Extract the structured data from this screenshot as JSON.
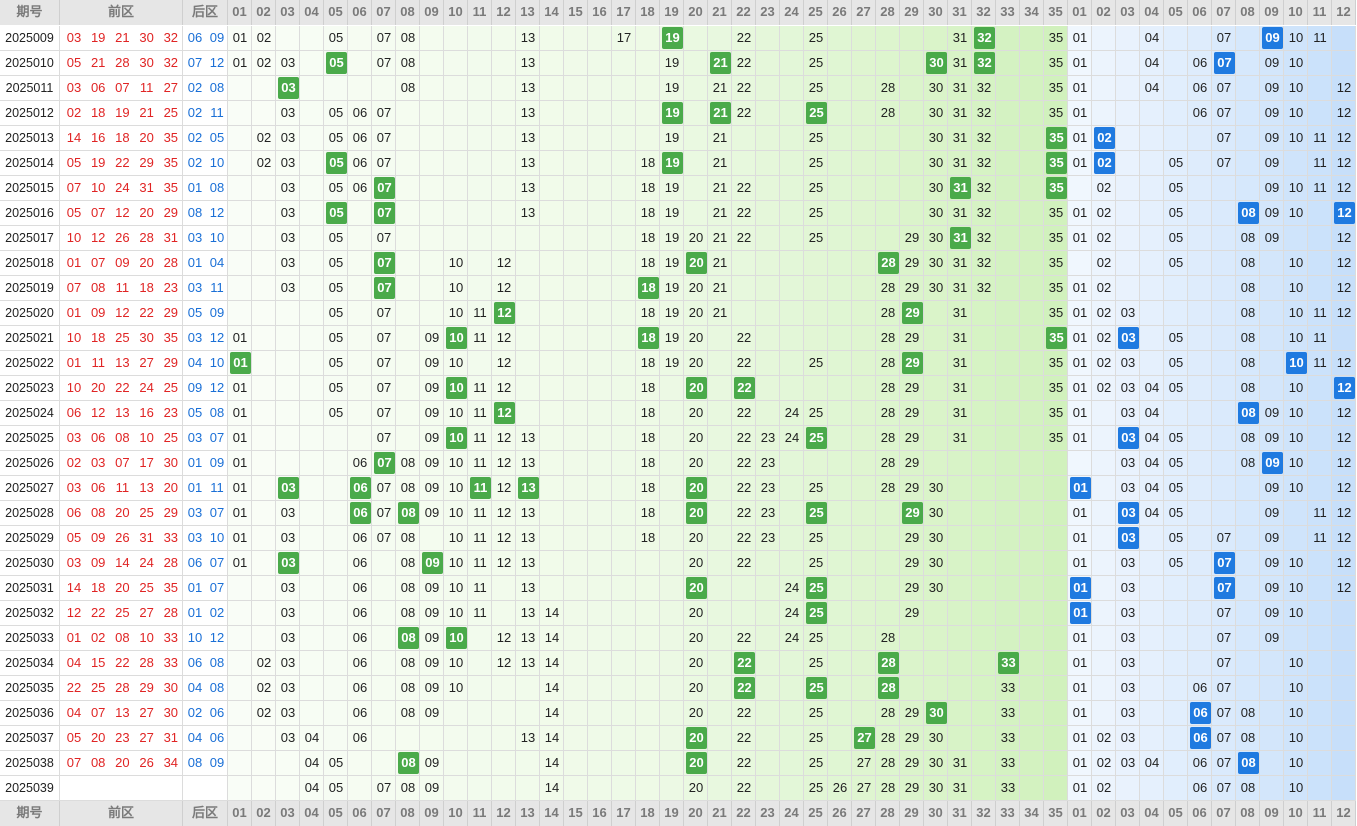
{
  "header": {
    "period": "期号",
    "front": "前区",
    "back": "后区",
    "front_cols": [
      "01",
      "02",
      "03",
      "04",
      "05",
      "06",
      "07",
      "08",
      "09",
      "10",
      "11",
      "12",
      "13",
      "14",
      "15",
      "16",
      "17",
      "18",
      "19",
      "20",
      "21",
      "22",
      "23",
      "24",
      "25",
      "26",
      "27",
      "28",
      "29",
      "30",
      "31",
      "32",
      "33",
      "34",
      "35"
    ],
    "back_cols": [
      "01",
      "02",
      "03",
      "04",
      "05",
      "06",
      "07",
      "08",
      "09",
      "10",
      "11",
      "12"
    ]
  },
  "rows": [
    {
      "period": "2025009",
      "front": [
        "03",
        "19",
        "21",
        "30",
        "32"
      ],
      "back": [
        "06",
        "09"
      ],
      "front_grid": [
        "01",
        "02",
        "05",
        "07",
        "08",
        "13",
        "17",
        "19",
        "22",
        "25",
        "31",
        "32",
        "35"
      ],
      "back_grid": [
        "01",
        "04",
        "07",
        "09",
        "10",
        "11"
      ]
    },
    {
      "period": "2025010",
      "front": [
        "05",
        "21",
        "28",
        "30",
        "32"
      ],
      "back": [
        "07",
        "12"
      ],
      "front_grid": [
        "01",
        "02",
        "03",
        "05",
        "07",
        "08",
        "13",
        "19",
        "21",
        "22",
        "25",
        "30",
        "31",
        "32",
        "35"
      ],
      "back_grid": [
        "01",
        "04",
        "06",
        "07",
        "09",
        "10"
      ]
    },
    {
      "period": "2025011",
      "front": [
        "03",
        "06",
        "07",
        "11",
        "27"
      ],
      "back": [
        "02",
        "08"
      ],
      "front_grid": [
        "03",
        "08",
        "13",
        "19",
        "21",
        "22",
        "25",
        "28",
        "30",
        "31",
        "32",
        "35"
      ],
      "back_grid": [
        "01",
        "04",
        "06",
        "07",
        "09",
        "10",
        "12"
      ]
    },
    {
      "period": "2025012",
      "front": [
        "02",
        "18",
        "19",
        "21",
        "25"
      ],
      "back": [
        "02",
        "11"
      ],
      "front_grid": [
        "03",
        "05",
        "06",
        "07",
        "13",
        "19",
        "21",
        "22",
        "25",
        "28",
        "30",
        "31",
        "32",
        "35"
      ],
      "back_grid": [
        "01",
        "06",
        "07",
        "09",
        "10",
        "12"
      ]
    },
    {
      "period": "2025013",
      "front": [
        "14",
        "16",
        "18",
        "20",
        "35"
      ],
      "back": [
        "02",
        "05"
      ],
      "front_grid": [
        "02",
        "03",
        "05",
        "06",
        "07",
        "13",
        "19",
        "21",
        "25",
        "30",
        "31",
        "32",
        "35"
      ],
      "back_grid": [
        "01",
        "02",
        "07",
        "09",
        "10",
        "11",
        "12"
      ]
    },
    {
      "period": "2025014",
      "front": [
        "05",
        "19",
        "22",
        "29",
        "35"
      ],
      "back": [
        "02",
        "10"
      ],
      "front_grid": [
        "02",
        "03",
        "05",
        "06",
        "07",
        "13",
        "18",
        "19",
        "21",
        "25",
        "30",
        "31",
        "32",
        "35"
      ],
      "back_grid": [
        "01",
        "02",
        "05",
        "07",
        "09",
        "11",
        "12"
      ]
    },
    {
      "period": "2025015",
      "front": [
        "07",
        "10",
        "24",
        "31",
        "35"
      ],
      "back": [
        "01",
        "08"
      ],
      "front_grid": [
        "03",
        "05",
        "06",
        "07",
        "13",
        "18",
        "19",
        "21",
        "22",
        "25",
        "30",
        "31",
        "32",
        "35"
      ],
      "back_grid": [
        "02",
        "05",
        "09",
        "10",
        "11",
        "12"
      ]
    },
    {
      "period": "2025016",
      "front": [
        "05",
        "07",
        "12",
        "20",
        "29"
      ],
      "back": [
        "08",
        "12"
      ],
      "front_grid": [
        "03",
        "05",
        "07",
        "13",
        "18",
        "19",
        "21",
        "22",
        "25",
        "30",
        "31",
        "32",
        "35"
      ],
      "back_grid": [
        "01",
        "02",
        "05",
        "08",
        "09",
        "10",
        "12"
      ]
    },
    {
      "period": "2025017",
      "front": [
        "10",
        "12",
        "26",
        "28",
        "31"
      ],
      "back": [
        "03",
        "10"
      ],
      "front_grid": [
        "03",
        "05",
        "07",
        "18",
        "19",
        "20",
        "21",
        "22",
        "25",
        "29",
        "30",
        "31",
        "32",
        "35"
      ],
      "back_grid": [
        "01",
        "02",
        "05",
        "08",
        "09",
        "12"
      ]
    },
    {
      "period": "2025018",
      "front": [
        "01",
        "07",
        "09",
        "20",
        "28"
      ],
      "back": [
        "01",
        "04"
      ],
      "front_grid": [
        "03",
        "05",
        "07",
        "10",
        "12",
        "18",
        "19",
        "20",
        "21",
        "28",
        "29",
        "30",
        "31",
        "32",
        "35"
      ],
      "back_grid": [
        "02",
        "05",
        "08",
        "10",
        "12"
      ]
    },
    {
      "period": "2025019",
      "front": [
        "07",
        "08",
        "11",
        "18",
        "23"
      ],
      "back": [
        "03",
        "11"
      ],
      "front_grid": [
        "03",
        "05",
        "07",
        "10",
        "12",
        "18",
        "19",
        "20",
        "21",
        "28",
        "29",
        "30",
        "31",
        "32",
        "35"
      ],
      "back_grid": [
        "01",
        "02",
        "08",
        "10",
        "12"
      ]
    },
    {
      "period": "2025020",
      "front": [
        "01",
        "09",
        "12",
        "22",
        "29"
      ],
      "back": [
        "05",
        "09"
      ],
      "front_grid": [
        "05",
        "07",
        "10",
        "11",
        "12",
        "18",
        "19",
        "20",
        "21",
        "28",
        "29",
        "31",
        "35"
      ],
      "back_grid": [
        "01",
        "02",
        "03",
        "08",
        "10",
        "11",
        "12"
      ]
    },
    {
      "period": "2025021",
      "front": [
        "10",
        "18",
        "25",
        "30",
        "35"
      ],
      "back": [
        "03",
        "12"
      ],
      "front_grid": [
        "01",
        "05",
        "07",
        "09",
        "10",
        "11",
        "12",
        "18",
        "19",
        "20",
        "22",
        "28",
        "29",
        "31",
        "35"
      ],
      "back_grid": [
        "01",
        "02",
        "03",
        "05",
        "08",
        "10",
        "11"
      ]
    },
    {
      "period": "2025022",
      "front": [
        "01",
        "11",
        "13",
        "27",
        "29"
      ],
      "back": [
        "04",
        "10"
      ],
      "front_grid": [
        "01",
        "05",
        "07",
        "09",
        "10",
        "12",
        "18",
        "19",
        "20",
        "22",
        "25",
        "28",
        "29",
        "31",
        "35"
      ],
      "back_grid": [
        "01",
        "02",
        "03",
        "05",
        "08",
        "10",
        "11",
        "12"
      ]
    },
    {
      "period": "2025023",
      "front": [
        "10",
        "20",
        "22",
        "24",
        "25"
      ],
      "back": [
        "09",
        "12"
      ],
      "front_grid": [
        "01",
        "05",
        "07",
        "09",
        "10",
        "11",
        "12",
        "18",
        "20",
        "22",
        "28",
        "29",
        "31",
        "35"
      ],
      "back_grid": [
        "01",
        "02",
        "03",
        "04",
        "05",
        "08",
        "10",
        "12"
      ]
    },
    {
      "period": "2025024",
      "front": [
        "06",
        "12",
        "13",
        "16",
        "23"
      ],
      "back": [
        "05",
        "08"
      ],
      "front_grid": [
        "01",
        "05",
        "07",
        "09",
        "10",
        "11",
        "12",
        "18",
        "20",
        "22",
        "24",
        "25",
        "28",
        "29",
        "31",
        "35"
      ],
      "back_grid": [
        "01",
        "03",
        "04",
        "08",
        "09",
        "10",
        "12"
      ]
    },
    {
      "period": "2025025",
      "front": [
        "03",
        "06",
        "08",
        "10",
        "25"
      ],
      "back": [
        "03",
        "07"
      ],
      "front_grid": [
        "01",
        "07",
        "09",
        "10",
        "11",
        "12",
        "13",
        "18",
        "20",
        "22",
        "23",
        "24",
        "25",
        "28",
        "29",
        "31",
        "35"
      ],
      "back_grid": [
        "01",
        "03",
        "04",
        "05",
        "08",
        "09",
        "10",
        "12"
      ]
    },
    {
      "period": "2025026",
      "front": [
        "02",
        "03",
        "07",
        "17",
        "30"
      ],
      "back": [
        "01",
        "09"
      ],
      "front_grid": [
        "01",
        "06",
        "07",
        "08",
        "09",
        "10",
        "11",
        "12",
        "13",
        "18",
        "20",
        "22",
        "23",
        "28",
        "29"
      ],
      "back_grid": [
        "03",
        "04",
        "05",
        "08",
        "09",
        "10",
        "12"
      ]
    },
    {
      "period": "2025027",
      "front": [
        "03",
        "06",
        "11",
        "13",
        "20"
      ],
      "back": [
        "01",
        "11"
      ],
      "front_grid": [
        "01",
        "03",
        "06",
        "07",
        "08",
        "09",
        "10",
        "11",
        "12",
        "13",
        "18",
        "20",
        "22",
        "23",
        "25",
        "28",
        "29",
        "30"
      ],
      "back_grid": [
        "01",
        "03",
        "04",
        "05",
        "09",
        "10",
        "12"
      ]
    },
    {
      "period": "2025028",
      "front": [
        "06",
        "08",
        "20",
        "25",
        "29"
      ],
      "back": [
        "03",
        "07"
      ],
      "front_grid": [
        "01",
        "03",
        "06",
        "07",
        "08",
        "09",
        "10",
        "11",
        "12",
        "13",
        "18",
        "20",
        "22",
        "23",
        "25",
        "29",
        "30"
      ],
      "back_grid": [
        "01",
        "03",
        "04",
        "05",
        "09",
        "11",
        "12"
      ]
    },
    {
      "period": "2025029",
      "front": [
        "05",
        "09",
        "26",
        "31",
        "33"
      ],
      "back": [
        "03",
        "10"
      ],
      "front_grid": [
        "01",
        "03",
        "06",
        "07",
        "08",
        "10",
        "11",
        "12",
        "13",
        "18",
        "20",
        "22",
        "23",
        "25",
        "29",
        "30"
      ],
      "back_grid": [
        "01",
        "03",
        "05",
        "07",
        "09",
        "11",
        "12"
      ]
    },
    {
      "period": "2025030",
      "front": [
        "03",
        "09",
        "14",
        "24",
        "28"
      ],
      "back": [
        "06",
        "07"
      ],
      "front_grid": [
        "01",
        "03",
        "06",
        "08",
        "09",
        "10",
        "11",
        "12",
        "13",
        "20",
        "22",
        "25",
        "29",
        "30"
      ],
      "back_grid": [
        "01",
        "03",
        "05",
        "07",
        "09",
        "10",
        "12"
      ]
    },
    {
      "period": "2025031",
      "front": [
        "14",
        "18",
        "20",
        "25",
        "35"
      ],
      "back": [
        "01",
        "07"
      ],
      "front_grid": [
        "03",
        "06",
        "08",
        "09",
        "10",
        "11",
        "13",
        "20",
        "24",
        "25",
        "29",
        "30"
      ],
      "back_grid": [
        "01",
        "03",
        "07",
        "09",
        "10",
        "12"
      ]
    },
    {
      "period": "2025032",
      "front": [
        "12",
        "22",
        "25",
        "27",
        "28"
      ],
      "back": [
        "01",
        "02"
      ],
      "front_grid": [
        "03",
        "06",
        "08",
        "09",
        "10",
        "11",
        "13",
        "14",
        "20",
        "24",
        "25",
        "29"
      ],
      "back_grid": [
        "01",
        "03",
        "07",
        "09",
        "10"
      ]
    },
    {
      "period": "2025033",
      "front": [
        "01",
        "02",
        "08",
        "10",
        "33"
      ],
      "back": [
        "10",
        "12"
      ],
      "front_grid": [
        "03",
        "06",
        "08",
        "09",
        "10",
        "12",
        "13",
        "14",
        "20",
        "22",
        "24",
        "25",
        "28"
      ],
      "back_grid": [
        "01",
        "03",
        "07",
        "09"
      ]
    },
    {
      "period": "2025034",
      "front": [
        "04",
        "15",
        "22",
        "28",
        "33"
      ],
      "back": [
        "06",
        "08"
      ],
      "front_grid": [
        "02",
        "03",
        "06",
        "08",
        "09",
        "10",
        "12",
        "13",
        "14",
        "20",
        "22",
        "25",
        "28",
        "33"
      ],
      "back_grid": [
        "01",
        "03",
        "07",
        "10"
      ]
    },
    {
      "period": "2025035",
      "front": [
        "22",
        "25",
        "28",
        "29",
        "30"
      ],
      "back": [
        "04",
        "08"
      ],
      "front_grid": [
        "02",
        "03",
        "06",
        "08",
        "09",
        "10",
        "14",
        "20",
        "22",
        "25",
        "28",
        "33"
      ],
      "back_grid": [
        "01",
        "03",
        "06",
        "07",
        "10"
      ]
    },
    {
      "period": "2025036",
      "front": [
        "04",
        "07",
        "13",
        "27",
        "30"
      ],
      "back": [
        "02",
        "06"
      ],
      "front_grid": [
        "02",
        "03",
        "06",
        "08",
        "09",
        "14",
        "20",
        "22",
        "25",
        "28",
        "29",
        "30",
        "33"
      ],
      "back_grid": [
        "01",
        "03",
        "06",
        "07",
        "08",
        "10"
      ]
    },
    {
      "period": "2025037",
      "front": [
        "05",
        "20",
        "23",
        "27",
        "31"
      ],
      "back": [
        "04",
        "06"
      ],
      "front_grid": [
        "03",
        "04",
        "06",
        "13",
        "14",
        "20",
        "22",
        "25",
        "27",
        "28",
        "29",
        "30",
        "33"
      ],
      "back_grid": [
        "01",
        "02",
        "03",
        "06",
        "07",
        "08",
        "10"
      ]
    },
    {
      "period": "2025038",
      "front": [
        "07",
        "08",
        "20",
        "26",
        "34"
      ],
      "back": [
        "08",
        "09"
      ],
      "front_grid": [
        "04",
        "05",
        "08",
        "09",
        "14",
        "20",
        "22",
        "25",
        "27",
        "28",
        "29",
        "30",
        "31",
        "33"
      ],
      "back_grid": [
        "01",
        "02",
        "03",
        "04",
        "06",
        "07",
        "08",
        "10"
      ]
    },
    {
      "period": "2025039",
      "front": [],
      "back": [],
      "front_grid": [
        "04",
        "05",
        "07",
        "08",
        "09",
        "14",
        "20",
        "22",
        "25",
        "26",
        "27",
        "28",
        "29",
        "30",
        "31",
        "33"
      ],
      "back_grid": [
        "01",
        "02",
        "06",
        "07",
        "08",
        "10"
      ]
    }
  ]
}
